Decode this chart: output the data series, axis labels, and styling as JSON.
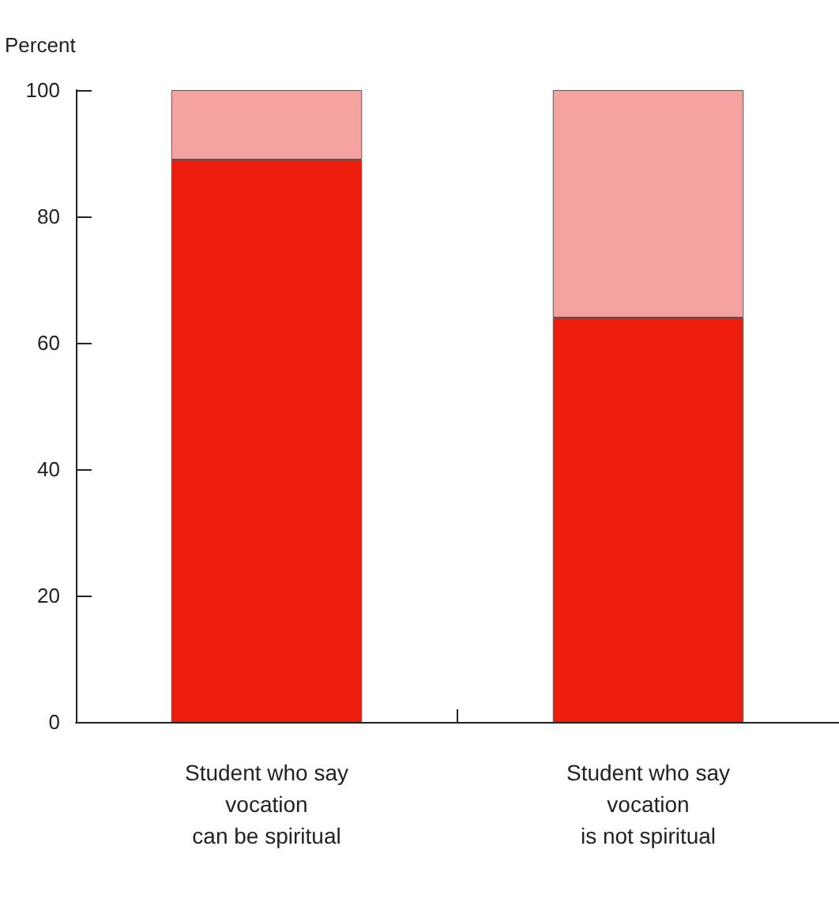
{
  "chart_data": {
    "type": "bar",
    "ylabel": "Percent",
    "categories": [
      "Student who say\nvocation\ncan be spiritual",
      "Student who say\nvocation\nis not spiritual"
    ],
    "series": [
      {
        "color": "#ee1c0c",
        "values": [
          89,
          64
        ]
      },
      {
        "color": "#f4a3a0",
        "values": [
          11,
          36
        ]
      }
    ],
    "stacked": true,
    "ylim": [
      0,
      100
    ],
    "yticks": [
      0,
      20,
      40,
      60,
      80,
      100
    ],
    "grid": false
  }
}
